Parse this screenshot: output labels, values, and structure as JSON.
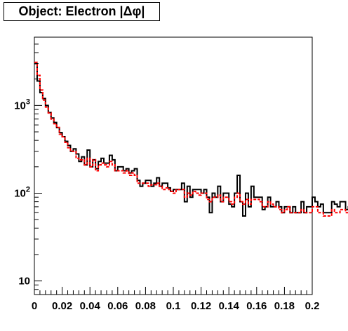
{
  "chart_data": {
    "type": "line",
    "title": "Object: Electron |Δφ|",
    "xlabel": "",
    "ylabel": "",
    "xlim": [
      0,
      0.2
    ],
    "ylim": [
      7,
      6000
    ],
    "y_scale": "log",
    "grid": false,
    "x_tick_labels": [
      "0",
      "0.02",
      "0.04",
      "0.06",
      "0.08",
      "0.1",
      "0.12",
      "0.14",
      "0.16",
      "0.18",
      "0.2"
    ],
    "y_tick_labels": [
      {
        "value": 10,
        "base": "10",
        "exp": ""
      },
      {
        "value": 100,
        "base": "10",
        "exp": "2"
      },
      {
        "value": 1000,
        "base": "10",
        "exp": "3"
      }
    ],
    "bin_edges_start": 0,
    "bin_width": 0.002,
    "series": [
      {
        "name": "",
        "color": "#000000",
        "style": "solid",
        "values": [
          3000,
          1900,
          1400,
          1200,
          1000,
          830,
          720,
          640,
          560,
          490,
          440,
          390,
          350,
          300,
          320,
          280,
          230,
          260,
          210,
          310,
          200,
          240,
          190,
          230,
          250,
          220,
          220,
          270,
          240,
          180,
          200,
          200,
          180,
          190,
          170,
          180,
          190,
          140,
          120,
          130,
          140,
          140,
          120,
          130,
          150,
          120,
          130,
          130,
          115,
          105,
          110,
          110,
          110,
          130,
          80,
          120,
          90,
          110,
          110,
          110,
          100,
          110,
          90,
          60,
          100,
          90,
          120,
          80,
          100,
          100,
          75,
          70,
          100,
          160,
          80,
          55,
          100,
          70,
          120,
          90,
          90,
          90,
          65,
          70,
          90,
          70,
          70,
          80,
          70,
          60,
          70,
          70,
          60,
          70,
          60,
          60,
          80,
          60,
          70,
          70,
          90,
          80,
          70,
          75,
          60,
          60,
          60,
          80,
          75,
          70,
          80,
          80,
          65,
          70,
          55,
          50,
          60,
          55,
          60,
          50,
          60,
          60,
          45,
          50,
          50,
          45,
          45,
          35,
          45,
          50,
          50,
          45,
          40,
          35,
          25,
          25,
          35,
          30,
          35,
          20,
          20,
          40,
          35,
          30,
          25,
          25,
          28,
          20,
          27,
          20,
          25,
          15,
          12,
          12,
          15,
          20,
          15,
          15,
          25,
          30,
          25,
          25,
          15,
          15,
          15,
          20,
          17,
          20,
          15,
          15,
          20,
          30,
          20,
          15,
          15,
          15,
          20,
          15,
          15,
          20,
          15,
          15,
          20,
          25,
          20,
          20,
          15,
          20,
          25,
          30,
          30,
          20,
          15,
          15,
          15,
          20,
          20,
          25,
          25,
          20,
          20,
          20,
          20,
          15,
          20,
          25,
          20,
          20,
          20,
          15,
          20,
          20,
          20,
          20,
          20,
          20,
          20,
          20,
          20,
          20
        ]
      },
      {
        "name": "",
        "color": "#ff0000",
        "style": "dashed",
        "values": [
          3100,
          2200,
          1500,
          1150,
          960,
          820,
          700,
          620,
          560,
          470,
          440,
          380,
          330,
          300,
          300,
          250,
          240,
          240,
          210,
          250,
          200,
          240,
          180,
          210,
          220,
          210,
          200,
          230,
          210,
          180,
          180,
          180,
          170,
          180,
          160,
          170,
          160,
          130,
          130,
          130,
          130,
          120,
          125,
          125,
          130,
          120,
          110,
          115,
          110,
          105,
          100,
          110,
          110,
          110,
          90,
          100,
          95,
          105,
          100,
          95,
          100,
          100,
          85,
          80,
          90,
          90,
          95,
          80,
          90,
          90,
          80,
          75,
          90,
          100,
          80,
          75,
          85,
          75,
          85,
          85,
          85,
          80,
          70,
          70,
          80,
          75,
          70,
          70,
          65,
          60,
          65,
          70,
          60,
          60,
          60,
          60,
          65,
          60,
          60,
          60,
          70,
          70,
          60,
          60,
          55,
          55,
          55,
          65,
          60,
          60,
          65,
          65,
          60,
          60,
          55,
          50,
          55,
          50,
          55,
          50,
          55,
          50,
          45,
          45,
          45,
          40,
          40,
          35,
          40,
          40,
          40,
          35,
          35,
          30,
          28,
          28,
          28,
          28,
          28,
          25,
          25,
          28,
          28,
          25,
          22,
          22,
          25,
          22,
          22,
          20,
          20,
          18,
          15,
          15,
          16,
          18,
          16,
          16,
          20,
          22,
          20,
          18,
          16,
          15,
          15,
          17,
          16,
          16,
          15,
          15,
          17,
          20,
          17,
          15,
          15,
          15,
          16,
          15,
          15,
          16,
          15,
          15,
          16,
          18,
          17,
          17,
          15,
          16,
          18,
          20,
          20,
          17,
          15,
          15,
          15,
          16,
          16,
          18,
          18,
          16,
          16,
          16,
          16,
          15,
          16,
          18,
          16,
          16,
          16,
          15,
          16,
          16,
          16,
          16,
          16,
          16,
          16,
          16,
          16,
          16
        ]
      }
    ]
  }
}
